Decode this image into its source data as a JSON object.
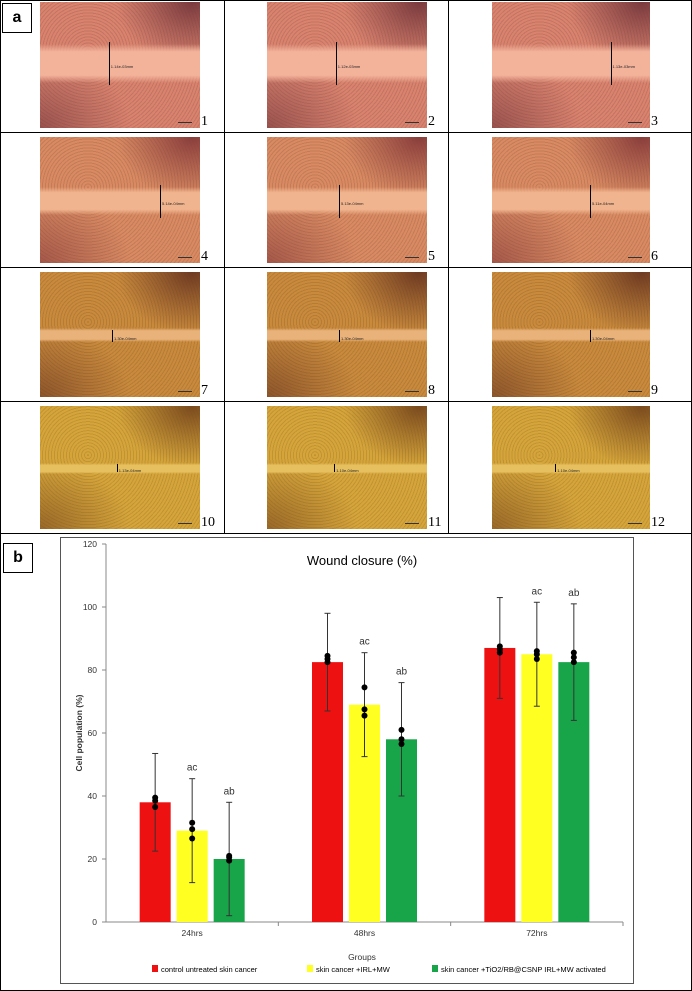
{
  "panel_a": {
    "label": "a",
    "images": [
      {
        "number": "1",
        "measure": "1.14e-03mm",
        "tint": "pink"
      },
      {
        "number": "2",
        "measure": "1.12e-03mm",
        "tint": "pink"
      },
      {
        "number": "3",
        "measure": "1.13e-03mm",
        "tint": "pink"
      },
      {
        "number": "4",
        "measure": "5.14e-04mm",
        "tint": "salmon"
      },
      {
        "number": "5",
        "measure": "5.13e-04mm",
        "tint": "salmon"
      },
      {
        "number": "6",
        "measure": "5.11e-04mm",
        "tint": "salmon"
      },
      {
        "number": "7",
        "measure": "1.30e-04mm",
        "tint": "orange"
      },
      {
        "number": "8",
        "measure": "1.30e-04mm",
        "tint": "orange"
      },
      {
        "number": "9",
        "measure": "1.30e-04mm",
        "tint": "orange"
      },
      {
        "number": "10",
        "measure": "1.13e-04mm",
        "tint": "gold"
      },
      {
        "number": "11",
        "measure": "1.10e-04mm",
        "tint": "gold"
      },
      {
        "number": "12",
        "measure": "1.10e-04mm",
        "tint": "gold"
      }
    ],
    "colors": {
      "pink": {
        "tissue": "#d9826e",
        "dark": "#7a3a3e",
        "gap": "#f3b39b"
      },
      "salmon": {
        "tissue": "#d98a62",
        "dark": "#8a3e3c",
        "gap": "#f0b48e"
      },
      "orange": {
        "tissue": "#c98a3c",
        "dark": "#6e3a22",
        "gap": "#e8b27a"
      },
      "gold": {
        "tissue": "#d6a53a",
        "dark": "#7a4a1e",
        "gap": "#e6bf5e"
      }
    }
  },
  "panel_b": {
    "label": "b"
  },
  "chart_data": {
    "type": "bar",
    "title": "Wound closure (%)",
    "xlabel": "Groups",
    "ylabel": "Cell population (%)",
    "ylim": [
      0,
      120
    ],
    "yticks": [
      0,
      20,
      40,
      60,
      80,
      100,
      120
    ],
    "categories": [
      "24hrs",
      "48hrs",
      "72hrs"
    ],
    "series": [
      {
        "name": "control untreated skin cancer",
        "color": "#ee1111",
        "values": [
          38,
          82.5,
          87
        ],
        "errors": [
          15.5,
          15.5,
          16
        ],
        "points": [
          [
            36.5,
            38.5,
            39.5
          ],
          [
            82.5,
            83.5,
            84.5
          ],
          [
            85.5,
            86.5,
            87.5
          ]
        ],
        "annotations": [
          "",
          "",
          ""
        ]
      },
      {
        "name": "skin cancer +IRL+MW",
        "color": "#ffff22",
        "values": [
          29,
          69,
          85
        ],
        "errors": [
          16.5,
          16.5,
          16.5
        ],
        "points": [
          [
            26.5,
            29.5,
            31.5
          ],
          [
            65.5,
            67.5,
            74.5
          ],
          [
            83.5,
            85,
            86
          ]
        ],
        "annotations": [
          "ac",
          "ac",
          "ac"
        ]
      },
      {
        "name": "skin cancer +TiO2/RB@CSNP IRL+MW activated",
        "color": "#18a54a",
        "values": [
          20,
          58,
          82.5
        ],
        "errors": [
          18,
          18,
          18.5
        ],
        "points": [
          [
            19.5,
            20.5,
            21
          ],
          [
            56.5,
            58,
            61
          ],
          [
            82.5,
            84,
            85.5
          ]
        ],
        "annotations": [
          "ab",
          "ab",
          "ab"
        ]
      }
    ],
    "legend_position": "bottom",
    "grid": false
  }
}
